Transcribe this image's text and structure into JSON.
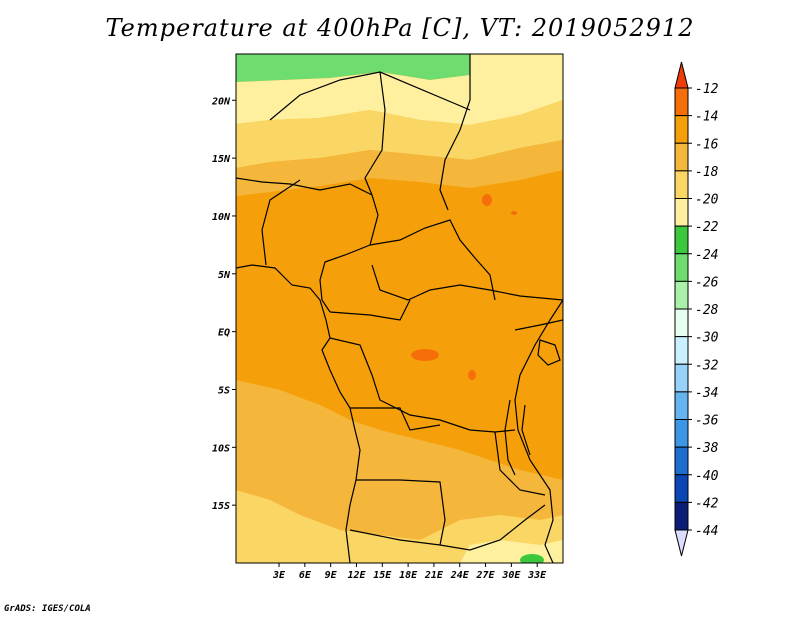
{
  "title": "Temperature at 400hPa [C], VT: 2019052912",
  "credit": "GrADS: IGES/COLA",
  "chart_data": {
    "type": "heatmap",
    "variable": "Temperature at 400hPa",
    "units": "C",
    "valid_time": "2019052912",
    "lon_range": [
      -2,
      36
    ],
    "lat_range": [
      -20,
      24
    ],
    "lon_ticks": [
      "3E",
      "6E",
      "9E",
      "12E",
      "15E",
      "18E",
      "21E",
      "24E",
      "27E",
      "30E",
      "33E"
    ],
    "lon_tick_values": [
      3,
      6,
      9,
      12,
      15,
      18,
      21,
      24,
      27,
      30,
      33
    ],
    "lat_ticks": [
      "20N",
      "15N",
      "10N",
      "5N",
      "EQ",
      "5S",
      "10S",
      "15S"
    ],
    "lat_tick_values": [
      20,
      15,
      10,
      5,
      0,
      -5,
      -10,
      -15
    ],
    "colorbar": {
      "levels": [
        "-12",
        "-14",
        "-16",
        "-18",
        "-20",
        "-22",
        "-24",
        "-26",
        "-28",
        "-30",
        "-32",
        "-34",
        "-36",
        "-38",
        "-40",
        "-42",
        "-44"
      ],
      "colors": [
        "#f03c0a",
        "#f56e0a",
        "#f5a00a",
        "#f5b63c",
        "#fad764",
        "#fff0a0",
        "#3cc83c",
        "#6edc6e",
        "#aaf0aa",
        "#e6fff0",
        "#c8f0ff",
        "#96d2fa",
        "#64b4f0",
        "#3c96e6",
        "#1e6ed2",
        "#0a46b4",
        "#0a1e78",
        "#dcdcff"
      ]
    }
  },
  "colors": {
    "band_n2": "#6edc6e",
    "band_n1": "#3cc83c",
    "band_n0": "#fff0a0",
    "band_nm": "#fad764",
    "band_main": "#f5a00a",
    "band_mid": "#f5b63c",
    "band_s": "#fad764",
    "band_warm": "#f56e0a",
    "coast": "#000000"
  }
}
